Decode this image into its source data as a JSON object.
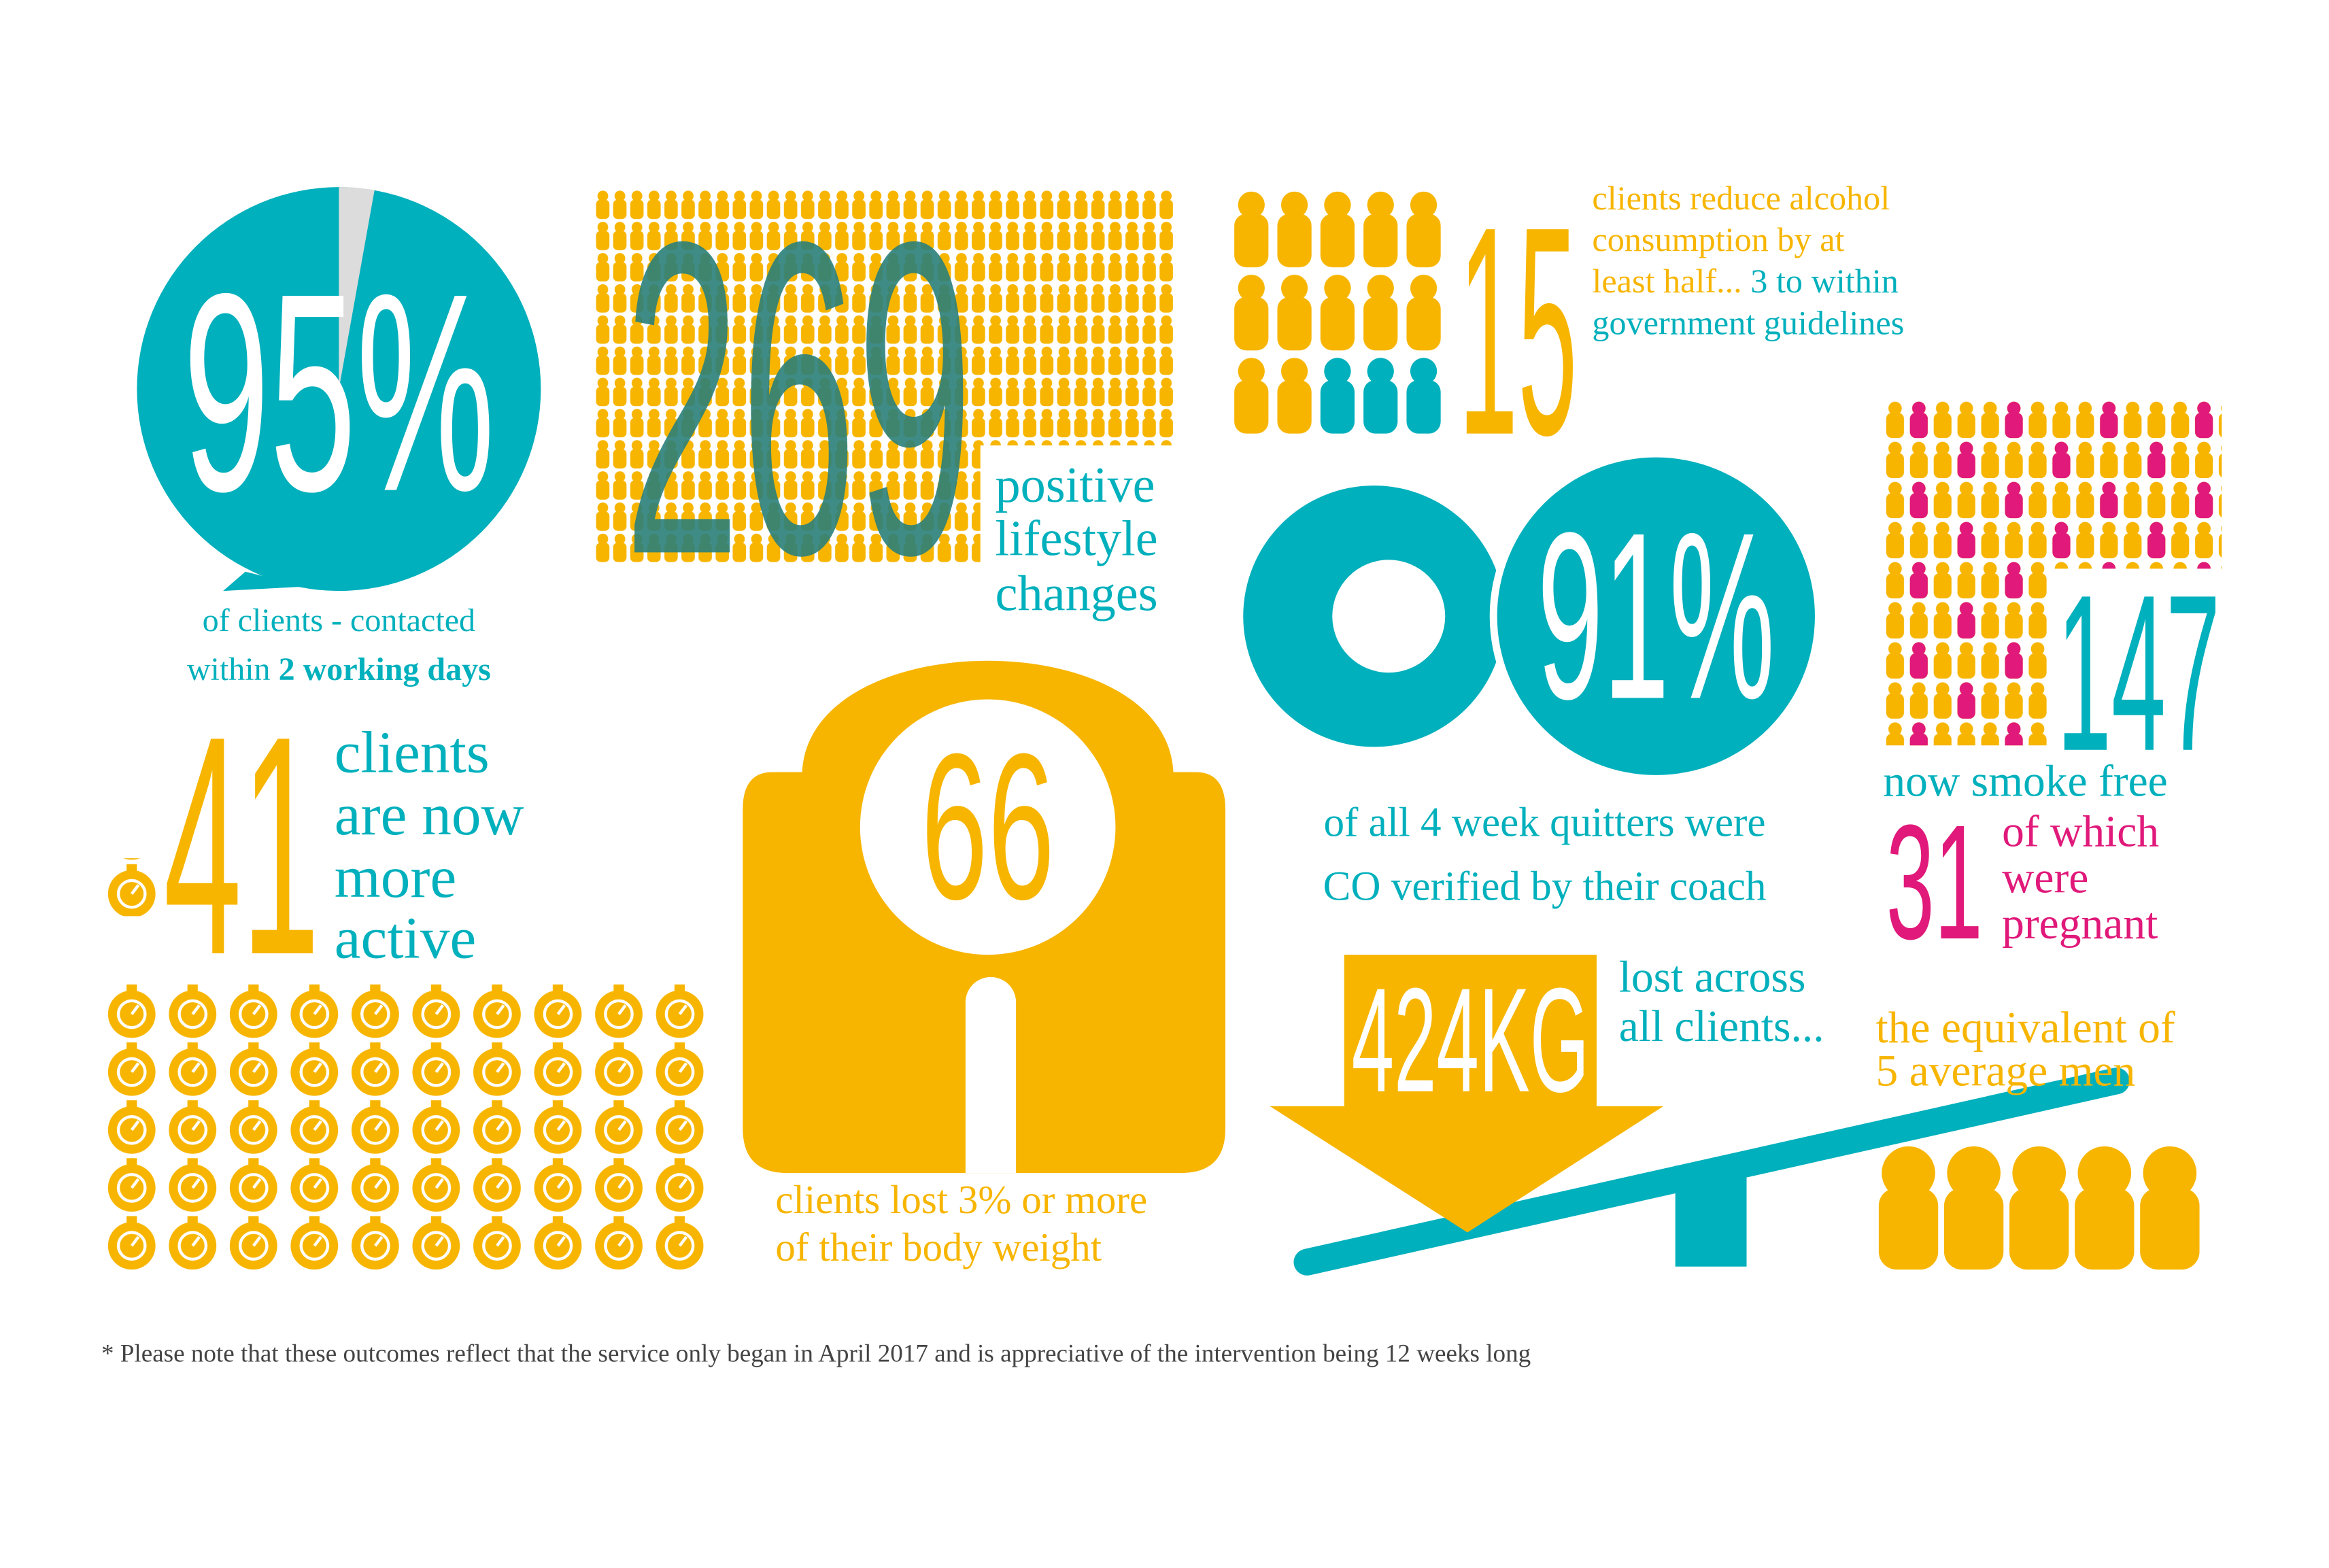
{
  "contacted": {
    "figure": "95%",
    "lines": [
      "of clients - contacted",
      "within"
    ],
    "emphasis": "2 working days"
  },
  "lifestyle": {
    "figure": "269",
    "lines": [
      "positive",
      "lifestyle",
      "changes"
    ]
  },
  "alcohol": {
    "figure": "15",
    "lines": [
      "clients reduce alcohol",
      "consumption by at",
      "least half...",
      "3 to within",
      "government guidelines"
    ]
  },
  "verified": {
    "figure": "91%",
    "lines": [
      "of all 4 week quitters were",
      "CO verified by their coach"
    ]
  },
  "smoke_free": {
    "figure": "147",
    "label": "now smoke free",
    "pregnant_figure": "31",
    "pregnant_lines": [
      "of which",
      "were",
      "pregnant"
    ]
  },
  "active": {
    "figure": "41",
    "lines": [
      "clients",
      "are now",
      "more",
      "active"
    ]
  },
  "weight": {
    "figure": "66",
    "lines": [
      "clients lost 3% or more",
      "of their body weight"
    ]
  },
  "lost": {
    "figure": "424KG",
    "lines": [
      "lost across",
      "all clients..."
    ],
    "equivalent": [
      "the equivalent of",
      "5 average men"
    ]
  },
  "footnote": "* Please note that these outcomes reflect that the service only began in April 2017 and is appreciative of the intervention being 12 weeks long"
}
